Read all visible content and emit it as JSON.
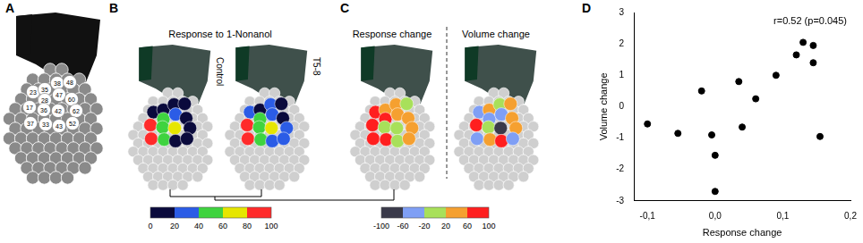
{
  "panel_labels": [
    "A",
    "B",
    "C",
    "D"
  ],
  "glomeruli": [
    23,
    35,
    38,
    48,
    28,
    47,
    60,
    17,
    36,
    42,
    62,
    37,
    33,
    43,
    52
  ],
  "panel_b": {
    "title": "Response to 1-Nonanol",
    "maps": [
      {
        "label": "Control",
        "values": [
          10,
          10,
          10,
          10,
          50,
          30,
          10,
          90,
          50,
          70,
          10,
          90,
          50,
          10,
          10
        ]
      },
      {
        "label": "T5-8",
        "values": [
          30,
          10,
          30,
          10,
          50,
          30,
          10,
          90,
          50,
          70,
          30,
          90,
          50,
          30,
          30
        ]
      }
    ],
    "colorbar": {
      "ticks": [
        0,
        20,
        40,
        60,
        80,
        100
      ],
      "colors": [
        "#0a0a3c",
        "#2b5ce6",
        "#3fd33f",
        "#e6e600",
        "#ff2a2a"
      ]
    }
  },
  "panel_c": {
    "maps": [
      {
        "title": "Response change",
        "values": [
          80,
          40,
          40,
          0,
          80,
          40,
          40,
          80,
          0,
          0,
          40,
          80,
          80,
          0,
          40
        ]
      },
      {
        "title": "Volume change",
        "values": [
          -40,
          40,
          0,
          40,
          -40,
          -40,
          40,
          80,
          0,
          -80,
          40,
          -40,
          40,
          80,
          -40
        ]
      }
    ],
    "colorbar": {
      "ticks": [
        -100,
        -60,
        -20,
        20,
        60,
        100
      ],
      "colors": [
        "#3a3a4a",
        "#7f9ff5",
        "#a8e05a",
        "#f5a030",
        "#ff1f1f"
      ]
    }
  },
  "chart_data": {
    "type": "scatter",
    "annotation": "r=0.52 (p=0.045)",
    "x_label": "Response change",
    "y_label": "Volume change",
    "x": [
      -0.1,
      -0.055,
      -0.02,
      -0.005,
      0.0,
      0.0,
      0.035,
      0.04,
      0.06,
      0.12,
      0.13,
      0.145,
      0.09,
      0.145,
      0.155
    ],
    "values": [
      -0.55,
      -0.85,
      0.5,
      -0.9,
      -1.55,
      -2.7,
      0.8,
      -0.65,
      0.25,
      1.65,
      2.05,
      1.95,
      1.0,
      1.4,
      -0.95
    ],
    "color": "#000000",
    "xlim": [
      -0.12,
      0.2
    ],
    "xticks": [
      {
        "value": -0.1,
        "label": "-0,1"
      },
      {
        "value": 0,
        "label": "0,0"
      },
      {
        "value": 0.1,
        "label": "0,1"
      },
      {
        "value": 0.2,
        "label": "0,2"
      }
    ],
    "ylim": [
      -3,
      3
    ],
    "yticks": [
      -3,
      -2,
      -1,
      0,
      1,
      2,
      3
    ],
    "grid": false
  }
}
